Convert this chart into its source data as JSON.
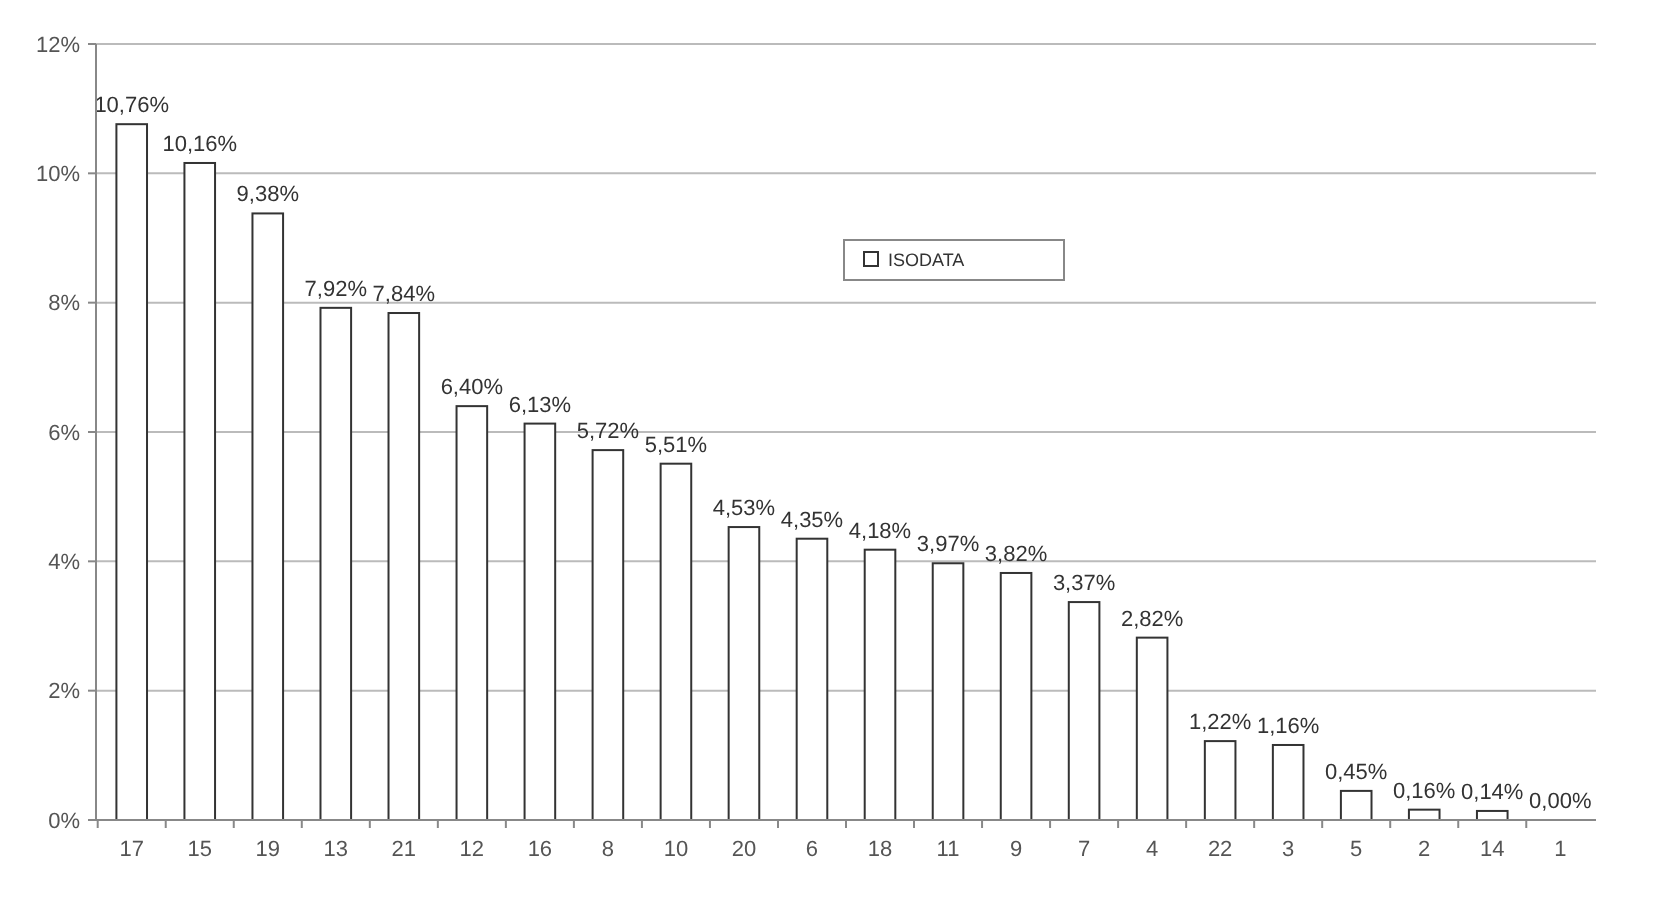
{
  "chart_data": {
    "type": "bar",
    "categories": [
      "17",
      "15",
      "19",
      "13",
      "21",
      "12",
      "16",
      "8",
      "10",
      "20",
      "6",
      "18",
      "11",
      "9",
      "7",
      "4",
      "22",
      "3",
      "5",
      "2",
      "14",
      "1"
    ],
    "series": [
      {
        "name": "ISODATA",
        "color": "#ffffff",
        "values": [
          10.76,
          10.16,
          9.38,
          7.92,
          7.84,
          6.4,
          6.13,
          5.72,
          5.51,
          4.53,
          4.35,
          4.18,
          3.97,
          3.82,
          3.37,
          2.82,
          1.22,
          1.16,
          0.45,
          0.16,
          0.14,
          0.0
        ],
        "value_labels": [
          "10,76%",
          "10,16%",
          "9,38%",
          "7,92%",
          "7,84%",
          "6,40%",
          "6,13%",
          "5,72%",
          "5,51%",
          "4,53%",
          "4,35%",
          "4,18%",
          "3,97%",
          "3,82%",
          "3,37%",
          "2,82%",
          "1,22%",
          "1,16%",
          "0,45%",
          "0,16%",
          "0,14%",
          "0,00%"
        ]
      }
    ],
    "ylim": [
      0,
      12
    ],
    "yticks": [
      {
        "value": 0,
        "label": "0%"
      },
      {
        "value": 2,
        "label": "2%"
      },
      {
        "value": 4,
        "label": "4%"
      },
      {
        "value": 6,
        "label": "6%"
      },
      {
        "value": 8,
        "label": "8%"
      },
      {
        "value": 10,
        "label": "10%"
      },
      {
        "value": 12,
        "label": "12%"
      }
    ],
    "grid": "y",
    "legend": "top right"
  }
}
